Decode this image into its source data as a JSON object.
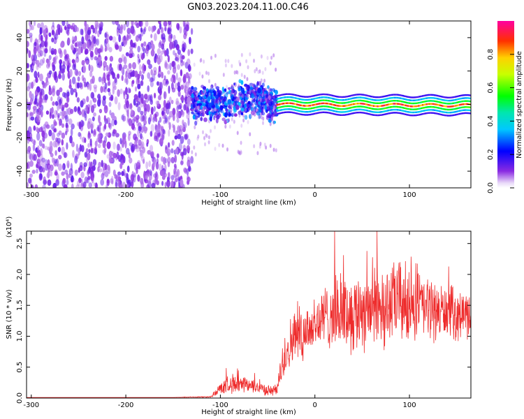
{
  "title": "GN03.2023.204.11.00.C46",
  "chart_data": [
    {
      "type": "heatmap",
      "xlabel": "Height of straight line (km)",
      "ylabel": "Frequency (Hz)",
      "xlim": [
        -305,
        165
      ],
      "ylim": [
        -50,
        50
      ],
      "x_ticks": [
        -300,
        -200,
        -100,
        0,
        100
      ],
      "x_tick_labels": [
        "-300",
        "-200",
        "-100",
        "0",
        "100"
      ],
      "y_ticks": [
        -40,
        -20,
        0,
        20,
        40
      ],
      "y_tick_labels": [
        "-40",
        "-20",
        "0",
        "20",
        "40"
      ],
      "colorbar": {
        "label": "Normalized spectral amplitude",
        "range": [
          0,
          1
        ],
        "ticks": [
          0.0,
          0.2,
          0.4,
          0.6,
          0.8
        ],
        "tick_labels": [
          "0.0",
          "0.2",
          "0.4",
          "0.6",
          "0.8"
        ],
        "colormap": "rainbow"
      },
      "regions": [
        {
          "x_range": [
            -305,
            -130
          ],
          "freq_range": [
            -50,
            50
          ],
          "amplitude": 0.06,
          "description_of_pattern": "broadband noise"
        },
        {
          "x_range": [
            -130,
            -40
          ],
          "freq_center": 0,
          "freq_halfwidth": 12,
          "amplitude": 0.25
        },
        {
          "x_range": [
            -40,
            165
          ],
          "freq_center": 0,
          "freq_halfwidth": 3,
          "amplitude": 0.9
        }
      ]
    },
    {
      "type": "line",
      "xlabel": "Height of straight line (km)",
      "ylabel": "SNR (10 * v/v)",
      "y_multiplier": "(x10⁴)",
      "xlim": [
        -305,
        165
      ],
      "ylim": [
        0,
        2.7
      ],
      "x_ticks": [
        -300,
        -200,
        -100,
        0,
        100
      ],
      "x_tick_labels": [
        "-300",
        "-200",
        "-100",
        "0",
        "100"
      ],
      "y_ticks": [
        0.0,
        0.5,
        1.0,
        1.5,
        2.0,
        2.5
      ],
      "y_tick_labels": [
        "0.0",
        "0.5",
        "1.0",
        "1.5",
        "2.0",
        "2.5"
      ],
      "color": "#ee2b2b",
      "envelope": {
        "x": [
          -305,
          -250,
          -200,
          -150,
          -110,
          -100,
          -90,
          -80,
          -70,
          -60,
          -50,
          -40,
          -35,
          -30,
          -20,
          -10,
          0,
          10,
          20,
          30,
          40,
          50,
          60,
          70,
          80,
          90,
          100,
          110,
          120,
          130,
          140,
          150,
          160,
          165
        ],
        "mean": [
          0.01,
          0.01,
          0.01,
          0.01,
          0.02,
          0.15,
          0.25,
          0.2,
          0.2,
          0.18,
          0.12,
          0.12,
          0.5,
          0.8,
          1.0,
          1.1,
          1.2,
          1.3,
          1.4,
          1.4,
          1.35,
          1.45,
          1.5,
          1.45,
          1.5,
          1.6,
          1.45,
          1.5,
          1.45,
          1.4,
          1.4,
          1.35,
          1.35,
          1.35
        ],
        "amplitude": [
          0.0,
          0.0,
          0.0,
          0.0,
          0.01,
          0.1,
          0.15,
          0.15,
          0.12,
          0.1,
          0.08,
          0.1,
          0.3,
          0.4,
          0.4,
          0.45,
          0.45,
          0.5,
          0.55,
          0.6,
          0.6,
          0.65,
          0.7,
          0.65,
          0.6,
          0.7,
          0.6,
          0.55,
          0.5,
          0.45,
          0.4,
          0.4,
          0.35,
          0.35
        ]
      }
    }
  ]
}
